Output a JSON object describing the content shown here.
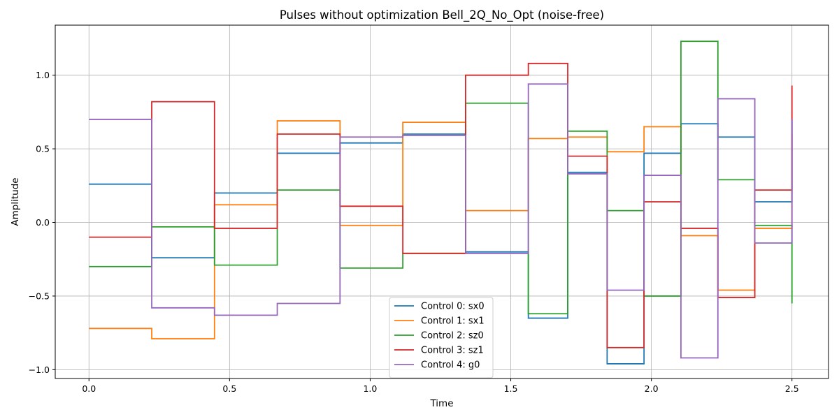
{
  "chart_data": {
    "type": "line",
    "step": "post",
    "title": "Pulses without optimization Bell_2Q_No_Opt (noise-free)",
    "xlabel": "Time",
    "ylabel": "Amplitude",
    "xlim": [
      -0.12,
      2.63
    ],
    "ylim": [
      -1.06,
      1.34
    ],
    "xticks": [
      0.0,
      0.5,
      1.0,
      1.5,
      2.0,
      2.5
    ],
    "xtick_labels": [
      "0.0",
      "0.5",
      "1.0",
      "1.5",
      "2.0",
      "2.5"
    ],
    "yticks": [
      -1.0,
      -0.5,
      0.0,
      0.5,
      1.0
    ],
    "ytick_labels": [
      "−1.0",
      "−0.5",
      "0.0",
      "0.5",
      "1.0"
    ],
    "grid": true,
    "legend_position": "lower center",
    "x": [
      0.0,
      0.2232,
      0.4464,
      0.6696,
      0.8928,
      1.1161,
      1.3393,
      1.5625,
      1.7026,
      1.8427,
      1.9739,
      2.1052,
      2.2366,
      2.3679,
      2.5
    ],
    "series": [
      {
        "name": "Control 0: sx0",
        "color": "#1f77b4",
        "values": [
          0.26,
          -0.24,
          0.2,
          0.47,
          0.54,
          0.6,
          -0.2,
          -0.65,
          0.34,
          -0.96,
          0.47,
          0.67,
          0.58,
          0.14,
          0.7
        ]
      },
      {
        "name": "Control 1: sx1",
        "color": "#ff7f0e",
        "values": [
          -0.72,
          -0.79,
          0.12,
          0.69,
          -0.02,
          0.68,
          0.08,
          0.57,
          0.58,
          0.48,
          0.65,
          -0.09,
          -0.46,
          -0.04,
          0.6
        ]
      },
      {
        "name": "Control 2: sz0",
        "color": "#2ca02c",
        "values": [
          -0.3,
          -0.03,
          -0.29,
          0.22,
          -0.31,
          -0.21,
          0.81,
          -0.62,
          0.62,
          0.08,
          -0.5,
          1.23,
          0.29,
          -0.02,
          -0.55
        ]
      },
      {
        "name": "Control 3: sz1",
        "color": "#d62728",
        "values": [
          -0.1,
          0.82,
          -0.04,
          0.6,
          0.11,
          -0.21,
          1.0,
          1.08,
          0.45,
          -0.85,
          0.14,
          -0.04,
          -0.51,
          0.22,
          0.93
        ]
      },
      {
        "name": "Control 4: g0",
        "color": "#9467bd",
        "values": [
          0.7,
          -0.58,
          -0.63,
          -0.55,
          0.58,
          0.59,
          -0.21,
          0.94,
          0.33,
          -0.46,
          0.32,
          -0.92,
          0.84,
          -0.14,
          0.7
        ]
      }
    ]
  }
}
